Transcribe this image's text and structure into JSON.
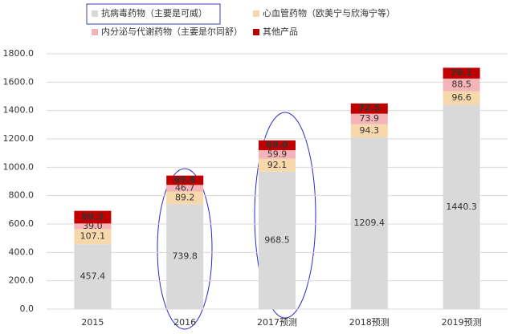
{
  "chart_data": {
    "type": "stacked_bar",
    "categories": [
      "2015",
      "2016",
      "2017预测",
      "2018预测",
      "2019预测"
    ],
    "series": [
      {
        "name": "抗病毒药物（主要是可威）",
        "color": "#d9d9d9",
        "values": [
          457.4,
          739.8,
          968.5,
          1209.4,
          1440.3
        ],
        "value_labels": [
          "457.4",
          "739.8",
          "968.5",
          "1209.4",
          "1440.3"
        ]
      },
      {
        "name": "心血管药物（欧美宁与欣海宁等）",
        "color": "#f6d8ac",
        "values": [
          107.1,
          89.2,
          92.1,
          94.3,
          96.6
        ],
        "value_labels": [
          "107.1",
          "89.2",
          "92.1",
          "94.3",
          "96.6"
        ]
      },
      {
        "name": "内分泌与代谢药物（主要是尔同舒）",
        "color": "#f4b4b8",
        "values": [
          39.0,
          46.7,
          59.9,
          73.9,
          88.5
        ],
        "value_labels": [
          "39.0",
          "46.7",
          "59.9",
          "73.9",
          "88.5"
        ]
      },
      {
        "name": "其他产品",
        "color": "#c00000",
        "values": [
          89.3,
          65.8,
          69.0,
          72.5,
          76.1
        ],
        "value_labels": [
          "89.3",
          "65.8",
          "69.0",
          "72.5",
          "76.1"
        ]
      }
    ],
    "ylim": [
      0,
      1800
    ],
    "yticks": [
      {
        "value": 0,
        "label": "0.0"
      },
      {
        "value": 200,
        "label": "200.0"
      },
      {
        "value": 400,
        "label": "400.0"
      },
      {
        "value": 600,
        "label": "600.0"
      },
      {
        "value": 800,
        "label": "800.0"
      },
      {
        "value": 1000,
        "label": "1000.0"
      },
      {
        "value": 1200,
        "label": "1200.0"
      },
      {
        "value": 1400,
        "label": "1400.0"
      },
      {
        "value": 1600,
        "label": "1600.0"
      },
      {
        "value": 1800,
        "label": "1800.0"
      }
    ],
    "grid": true
  }
}
